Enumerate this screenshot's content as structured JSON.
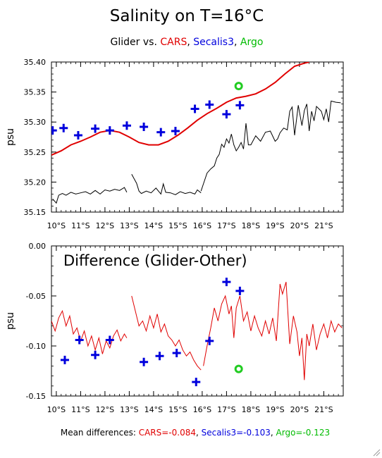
{
  "title": "Salinity on T=16°C",
  "subtitle": [
    {
      "text": "Glider vs. ",
      "color": "#000000"
    },
    {
      "text": "CARS",
      "color": "#e00000"
    },
    {
      "text": ", ",
      "color": "#000000"
    },
    {
      "text": "Secalis3",
      "color": "#0000dd"
    },
    {
      "text": ", ",
      "color": "#000000"
    },
    {
      "text": "Argo",
      "color": "#00bb00"
    }
  ],
  "colors": {
    "glider": "#000000",
    "cars": "#e00000",
    "secalis3": "#0000dd",
    "argo": "#22cc22"
  },
  "footer": [
    {
      "text": "Mean differences: ",
      "color": "#000000"
    },
    {
      "text": "CARS=-0.084",
      "color": "#e00000"
    },
    {
      "text": ", ",
      "color": "#000000"
    },
    {
      "text": "Secalis3=-0.103",
      "color": "#0000dd"
    },
    {
      "text": ", ",
      "color": "#000000"
    },
    {
      "text": "Argo=-0.123",
      "color": "#00bb00"
    }
  ],
  "chart_data": [
    {
      "type": "line",
      "ylabel": "psu",
      "xlim": [
        9.8,
        21.8
      ],
      "ylim": [
        35.15,
        35.4
      ],
      "yticks": [
        "35.15",
        "35.20",
        "35.25",
        "35.30",
        "35.35",
        "35.40"
      ],
      "ytick_values": [
        35.15,
        35.2,
        35.25,
        35.3,
        35.35,
        35.4
      ],
      "xticks": [
        "10°S",
        "11°S",
        "12°S",
        "13°S",
        "14°S",
        "15°S",
        "16°S",
        "17°S",
        "18°S",
        "19°S",
        "20°S",
        "21°S"
      ],
      "xtick_values": [
        10,
        11,
        12,
        13,
        14,
        15,
        16,
        17,
        18,
        19,
        20,
        21
      ],
      "series": [
        {
          "key": "cars",
          "kind": "line",
          "x": [
            9.8,
            10.2,
            10.6,
            11.0,
            11.4,
            11.8,
            12.2,
            12.6,
            13.0,
            13.4,
            13.8,
            14.2,
            14.6,
            15.0,
            15.4,
            15.8,
            16.2,
            16.6,
            17.0,
            17.4,
            17.8,
            18.2,
            18.6,
            19.0,
            19.4,
            19.8,
            20.2,
            20.4
          ],
          "y": [
            35.245,
            35.252,
            35.262,
            35.268,
            35.275,
            35.283,
            35.286,
            35.283,
            35.275,
            35.266,
            35.262,
            35.262,
            35.268,
            35.278,
            35.29,
            35.303,
            35.314,
            35.323,
            35.333,
            35.34,
            35.343,
            35.347,
            35.355,
            35.366,
            35.38,
            35.393,
            35.398,
            35.4
          ]
        },
        {
          "key": "glider",
          "kind": "line",
          "segments": [
            {
              "x": [
                9.85,
                10.0,
                10.1,
                10.25,
                10.4,
                10.6,
                10.8,
                11.0,
                11.2,
                11.4,
                11.6,
                11.8,
                12.0,
                12.2,
                12.4,
                12.6,
                12.8,
                12.9
              ],
              "y": [
                35.172,
                35.165,
                35.178,
                35.181,
                35.178,
                35.183,
                35.18,
                35.182,
                35.184,
                35.18,
                35.186,
                35.18,
                35.187,
                35.185,
                35.188,
                35.186,
                35.191,
                35.183
              ]
            },
            {
              "x": [
                13.1,
                13.3,
                13.4,
                13.5,
                13.7,
                13.9,
                14.1,
                14.3,
                14.4,
                14.5,
                14.7,
                14.9,
                15.1,
                15.3,
                15.5,
                15.7,
                15.8,
                15.95
              ],
              "y": [
                35.213,
                35.198,
                35.185,
                35.181,
                35.185,
                35.182,
                35.19,
                35.18,
                35.197,
                35.183,
                35.182,
                35.179,
                35.184,
                35.181,
                35.183,
                35.18,
                35.187,
                35.182
              ]
            },
            {
              "x": [
                15.95,
                16.05,
                16.2,
                16.35,
                16.5,
                16.6,
                16.7,
                16.8,
                16.9,
                17.0,
                17.1,
                17.2,
                17.3,
                17.4,
                17.5,
                17.6,
                17.7,
                17.8,
                17.9,
                18.0,
                18.2,
                18.4,
                18.6,
                18.8,
                19.0,
                19.1,
                19.2,
                19.35,
                19.5,
                19.6,
                19.7,
                19.8,
                19.95,
                20.1,
                20.2,
                20.3,
                20.4,
                20.5,
                20.6,
                20.7,
                20.8,
                20.9,
                21.0,
                21.1,
                21.2,
                21.3,
                21.5,
                21.7
              ],
              "y": [
                35.185,
                35.197,
                35.215,
                35.222,
                35.227,
                35.24,
                35.246,
                35.263,
                35.258,
                35.272,
                35.265,
                35.28,
                35.262,
                35.252,
                35.258,
                35.266,
                35.255,
                35.298,
                35.262,
                35.262,
                35.277,
                35.268,
                35.283,
                35.285,
                35.268,
                35.272,
                35.282,
                35.29,
                35.287,
                35.318,
                35.325,
                35.278,
                35.328,
                35.294,
                35.319,
                35.33,
                35.285,
                35.318,
                35.302,
                35.326,
                35.322,
                35.318,
                35.304,
                35.322,
                35.3,
                35.335,
                35.333,
                35.332
              ]
            }
          ]
        },
        {
          "key": "secalis3",
          "kind": "plus",
          "x": [
            9.85,
            10.3,
            10.9,
            11.6,
            12.2,
            12.9,
            13.6,
            14.3,
            14.9,
            15.7,
            16.3,
            17.0,
            17.55
          ],
          "y": [
            35.286,
            35.29,
            35.278,
            35.289,
            35.286,
            35.294,
            35.292,
            35.283,
            35.285,
            35.322,
            35.329,
            35.313,
            35.328
          ]
        },
        {
          "key": "argo",
          "kind": "circle",
          "x": [
            17.5
          ],
          "y": [
            35.36
          ]
        }
      ]
    },
    {
      "type": "line",
      "ylabel": "psu",
      "title": "Difference (Glider-Other)",
      "xlim": [
        9.8,
        21.8
      ],
      "ylim": [
        -0.15,
        0.0
      ],
      "yticks": [
        "-0.15",
        "-0.10",
        "-0.05",
        "0.00"
      ],
      "ytick_values": [
        -0.15,
        -0.1,
        -0.05,
        0.0
      ],
      "xticks": [
        "10°S",
        "11°S",
        "12°S",
        "13°S",
        "14°S",
        "15°S",
        "16°S",
        "17°S",
        "18°S",
        "19°S",
        "20°S",
        "21°S"
      ],
      "xtick_values": [
        10,
        11,
        12,
        13,
        14,
        15,
        16,
        17,
        18,
        19,
        20,
        21
      ],
      "series": [
        {
          "key": "cars",
          "kind": "line",
          "segments": [
            {
              "x": [
                9.8,
                9.95,
                10.1,
                10.25,
                10.4,
                10.55,
                10.7,
                10.85,
                11.0,
                11.15,
                11.3,
                11.45,
                11.6,
                11.75,
                11.9,
                12.05,
                12.2,
                12.35,
                12.5,
                12.65,
                12.8,
                12.9
              ],
              "y": [
                -0.075,
                -0.085,
                -0.072,
                -0.065,
                -0.08,
                -0.07,
                -0.088,
                -0.082,
                -0.095,
                -0.085,
                -0.1,
                -0.09,
                -0.104,
                -0.092,
                -0.108,
                -0.095,
                -0.102,
                -0.09,
                -0.084,
                -0.095,
                -0.088,
                -0.092
              ]
            },
            {
              "x": [
                13.1,
                13.25,
                13.4,
                13.55,
                13.7,
                13.85,
                14.0,
                14.15,
                14.3,
                14.45,
                14.6,
                14.75,
                14.9,
                15.05,
                15.2,
                15.35,
                15.5,
                15.65,
                15.8,
                15.95
              ],
              "y": [
                -0.05,
                -0.065,
                -0.08,
                -0.075,
                -0.085,
                -0.07,
                -0.082,
                -0.068,
                -0.086,
                -0.078,
                -0.09,
                -0.094,
                -0.1,
                -0.094,
                -0.104,
                -0.11,
                -0.106,
                -0.114,
                -0.12,
                -0.124
              ]
            },
            {
              "x": [
                16.05,
                16.2,
                16.35,
                16.5,
                16.65,
                16.8,
                16.95,
                17.1,
                17.2,
                17.3,
                17.4,
                17.55,
                17.7,
                17.85,
                18.0,
                18.15,
                18.3,
                18.45,
                18.6,
                18.75,
                18.9,
                19.05,
                19.2,
                19.3,
                19.45,
                19.6,
                19.75,
                19.9,
                20.0,
                20.1,
                20.2,
                20.3,
                20.4,
                20.55,
                20.7,
                20.85,
                21.0,
                21.15,
                21.3,
                21.45,
                21.6,
                21.75
              ],
              "y": [
                -0.12,
                -0.1,
                -0.082,
                -0.062,
                -0.075,
                -0.058,
                -0.05,
                -0.068,
                -0.06,
                -0.092,
                -0.062,
                -0.05,
                -0.075,
                -0.066,
                -0.085,
                -0.07,
                -0.082,
                -0.09,
                -0.075,
                -0.088,
                -0.072,
                -0.095,
                -0.038,
                -0.048,
                -0.036,
                -0.098,
                -0.07,
                -0.086,
                -0.11,
                -0.092,
                -0.134,
                -0.088,
                -0.1,
                -0.078,
                -0.104,
                -0.088,
                -0.078,
                -0.092,
                -0.075,
                -0.086,
                -0.078,
                -0.082
              ]
            }
          ]
        },
        {
          "key": "secalis3",
          "kind": "plus",
          "x": [
            10.35,
            10.95,
            11.6,
            12.2,
            13.6,
            14.25,
            14.95,
            15.75,
            16.3,
            17.0,
            17.55
          ],
          "y": [
            -0.114,
            -0.094,
            -0.109,
            -0.094,
            -0.116,
            -0.11,
            -0.107,
            -0.136,
            -0.095,
            -0.036,
            -0.045
          ]
        },
        {
          "key": "argo",
          "kind": "circle",
          "x": [
            17.5
          ],
          "y": [
            -0.123
          ]
        }
      ]
    }
  ]
}
